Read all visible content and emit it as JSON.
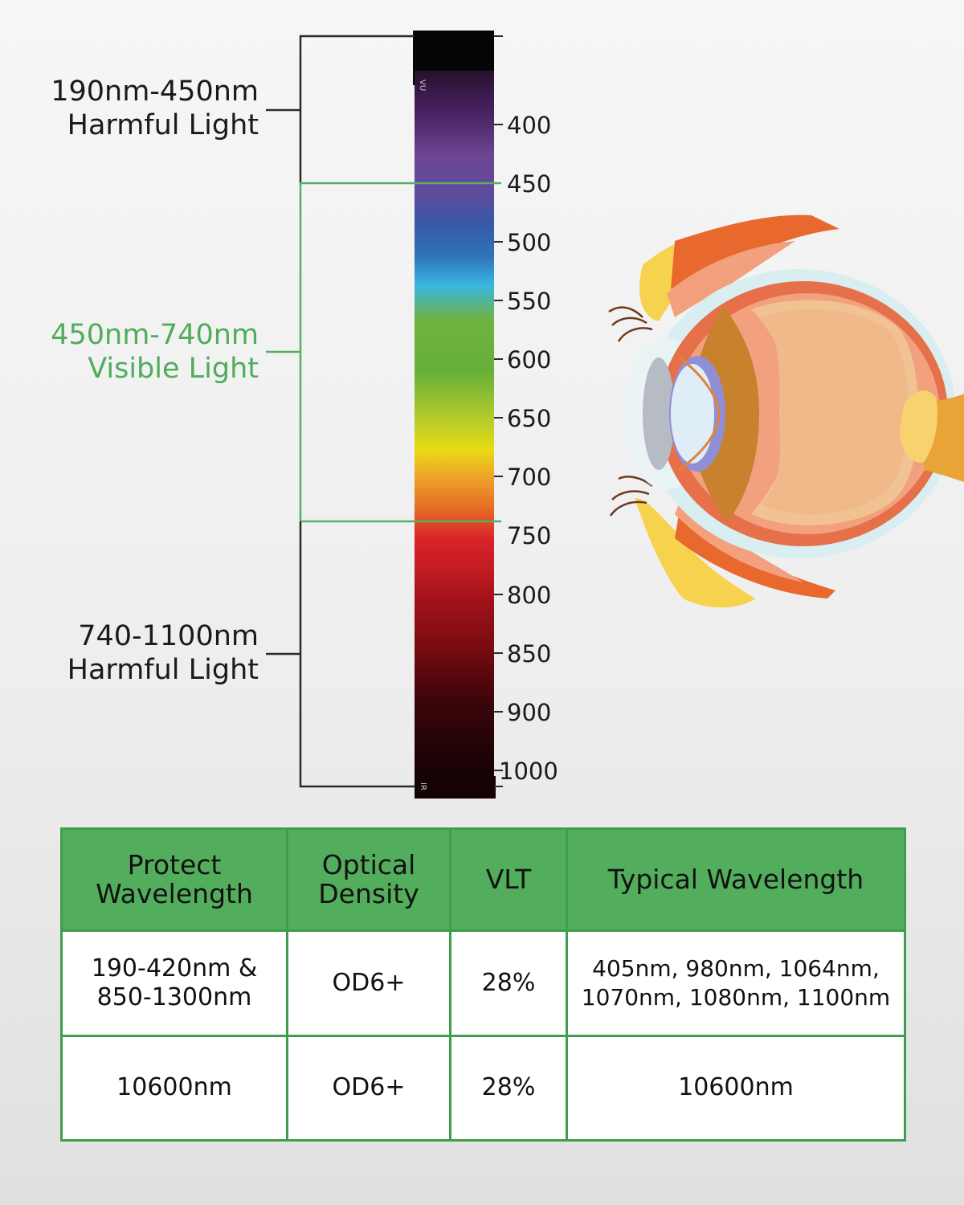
{
  "spectrum": {
    "ranges": [
      {
        "line1": "190nm-450nm",
        "line2": "Harmful Light"
      },
      {
        "line1": "450nm-740nm",
        "line2": "Visible Light"
      },
      {
        "line1": "740-1100nm",
        "line2": "Harmful Light"
      }
    ],
    "ticks": [
      "400",
      "450",
      "500",
      "550",
      "600",
      "650",
      "700",
      "750",
      "800",
      "850",
      "900",
      "1000"
    ],
    "bar_top_text": "VU",
    "bar_bottom_text": "IR",
    "colors": {
      "bracket_dark": "#2b2b2b",
      "bracket_green": "#56b061",
      "label_green": "#4fad5b"
    }
  },
  "table": {
    "headers": [
      {
        "line1": "Protect",
        "line2": "Wavelength"
      },
      {
        "line1": "Optical",
        "line2": "Density"
      },
      {
        "line1": "VLT",
        "line2": ""
      },
      {
        "line1": "Typical Wavelength",
        "line2": ""
      }
    ],
    "rows": [
      {
        "protect_line1": "190-420nm &",
        "protect_line2": "850-1300nm",
        "od": "OD6+",
        "vlt": "28%",
        "typical_line1": "405nm, 980nm, 1064nm,",
        "typical_line2": "1070nm, 1080nm, 1100nm"
      },
      {
        "protect_line1": "10600nm",
        "protect_line2": "",
        "od": "OD6+",
        "vlt": "28%",
        "typical_line1": "10600nm",
        "typical_line2": ""
      }
    ],
    "colors": {
      "header_bg": "#52ae5c",
      "border": "#3f9e4b"
    }
  },
  "eye": {
    "icon": "eye-anatomy-illustration"
  }
}
